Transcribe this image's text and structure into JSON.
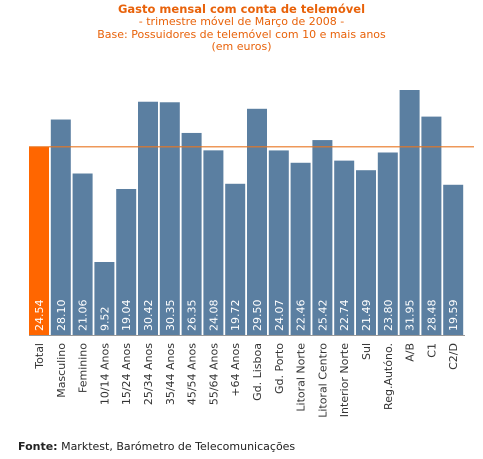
{
  "titles": {
    "title": "Gasto mensal com conta de telemóvel",
    "line2": "- trimestre móvel de Março de 2008 -",
    "line3": "Base: Possuidores de telemóvel com 10 e mais anos",
    "line4": "(em euros)"
  },
  "footer": {
    "label": "Fonte:",
    "text": "Marktest, Barómetro de Telecomunicações"
  },
  "colors": {
    "bar": "#5b7fa1",
    "highlight": "#ff6600",
    "reference_line": "#e87722",
    "axis": "#999999",
    "value_label": "#ffffff",
    "category_label": "#333333"
  },
  "chart_data": {
    "type": "bar",
    "categories": [
      "Total",
      "Masculino",
      "Feminino",
      "10/14 Anos",
      "15/24 Anos",
      "25/34 Anos",
      "35/44 Anos",
      "45/54 Anos",
      "55/64 Anos",
      "+64 Anos",
      "Gd. Lisboa",
      "Gd. Porto",
      "Litoral Norte",
      "Litoral Centro",
      "Interior Norte",
      "Sul",
      "Reg.Autóno.",
      "A/B",
      "C1",
      "C2/D"
    ],
    "values": [
      24.54,
      28.1,
      21.06,
      9.52,
      19.04,
      30.42,
      30.35,
      26.35,
      24.08,
      19.72,
      29.5,
      24.07,
      22.46,
      25.42,
      22.74,
      21.49,
      23.8,
      31.95,
      28.48,
      19.59
    ],
    "value_labels": [
      "24.54",
      "28.10",
      "21.06",
      "9.52",
      "19.04",
      "30.42",
      "30.35",
      "26.35",
      "24.08",
      "19.72",
      "29.50",
      "24.07",
      "22.46",
      "25.42",
      "22.74",
      "21.49",
      "23.80",
      "31.95",
      "28.48",
      "19.59"
    ],
    "highlight_index": 0,
    "reference_value": 24.54,
    "ylim": [
      0,
      33
    ],
    "grid": false,
    "legend": "none"
  }
}
